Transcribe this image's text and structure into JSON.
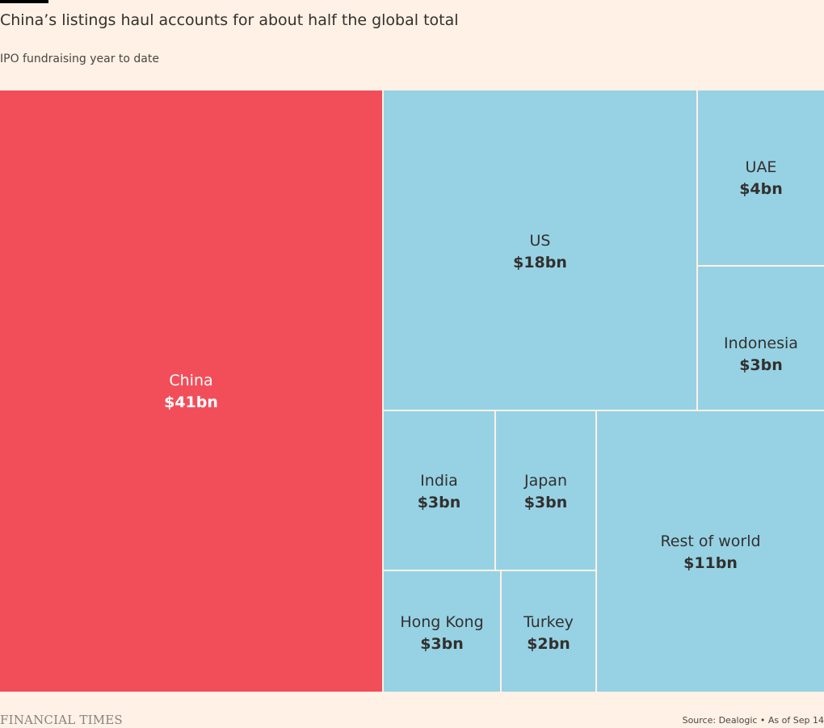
{
  "header": {
    "title": "China’s listings haul accounts for about half the global total",
    "subtitle": "IPO fundraising year to date"
  },
  "footer": {
    "brand": "FINANCIAL TIMES",
    "source": "Source: Dealogic • As of Sep 14"
  },
  "colors": {
    "background": "#fff1e5",
    "highlight": "#f24e5a",
    "other": "#96d2e4",
    "text_dark": "#33302e",
    "text_light": "#ffffff"
  },
  "chart_data": {
    "type": "treemap",
    "title": "China’s listings haul accounts for about half the global total",
    "subtitle": "IPO fundraising year to date",
    "unit": "$bn",
    "items": [
      {
        "name": "China",
        "value": 41,
        "label": "$41bn",
        "highlight": true
      },
      {
        "name": "US",
        "value": 18,
        "label": "$18bn",
        "highlight": false
      },
      {
        "name": "UAE",
        "value": 4,
        "label": "$4bn",
        "highlight": false
      },
      {
        "name": "Indonesia",
        "value": 3,
        "label": "$3bn",
        "highlight": false
      },
      {
        "name": "India",
        "value": 3,
        "label": "$3bn",
        "highlight": false
      },
      {
        "name": "Japan",
        "value": 3,
        "label": "$3bn",
        "highlight": false
      },
      {
        "name": "Hong Kong",
        "value": 3,
        "label": "$3bn",
        "highlight": false
      },
      {
        "name": "Turkey",
        "value": 2,
        "label": "$2bn",
        "highlight": false
      },
      {
        "name": "Rest of world",
        "value": 11,
        "label": "$11bn",
        "highlight": false
      }
    ]
  }
}
